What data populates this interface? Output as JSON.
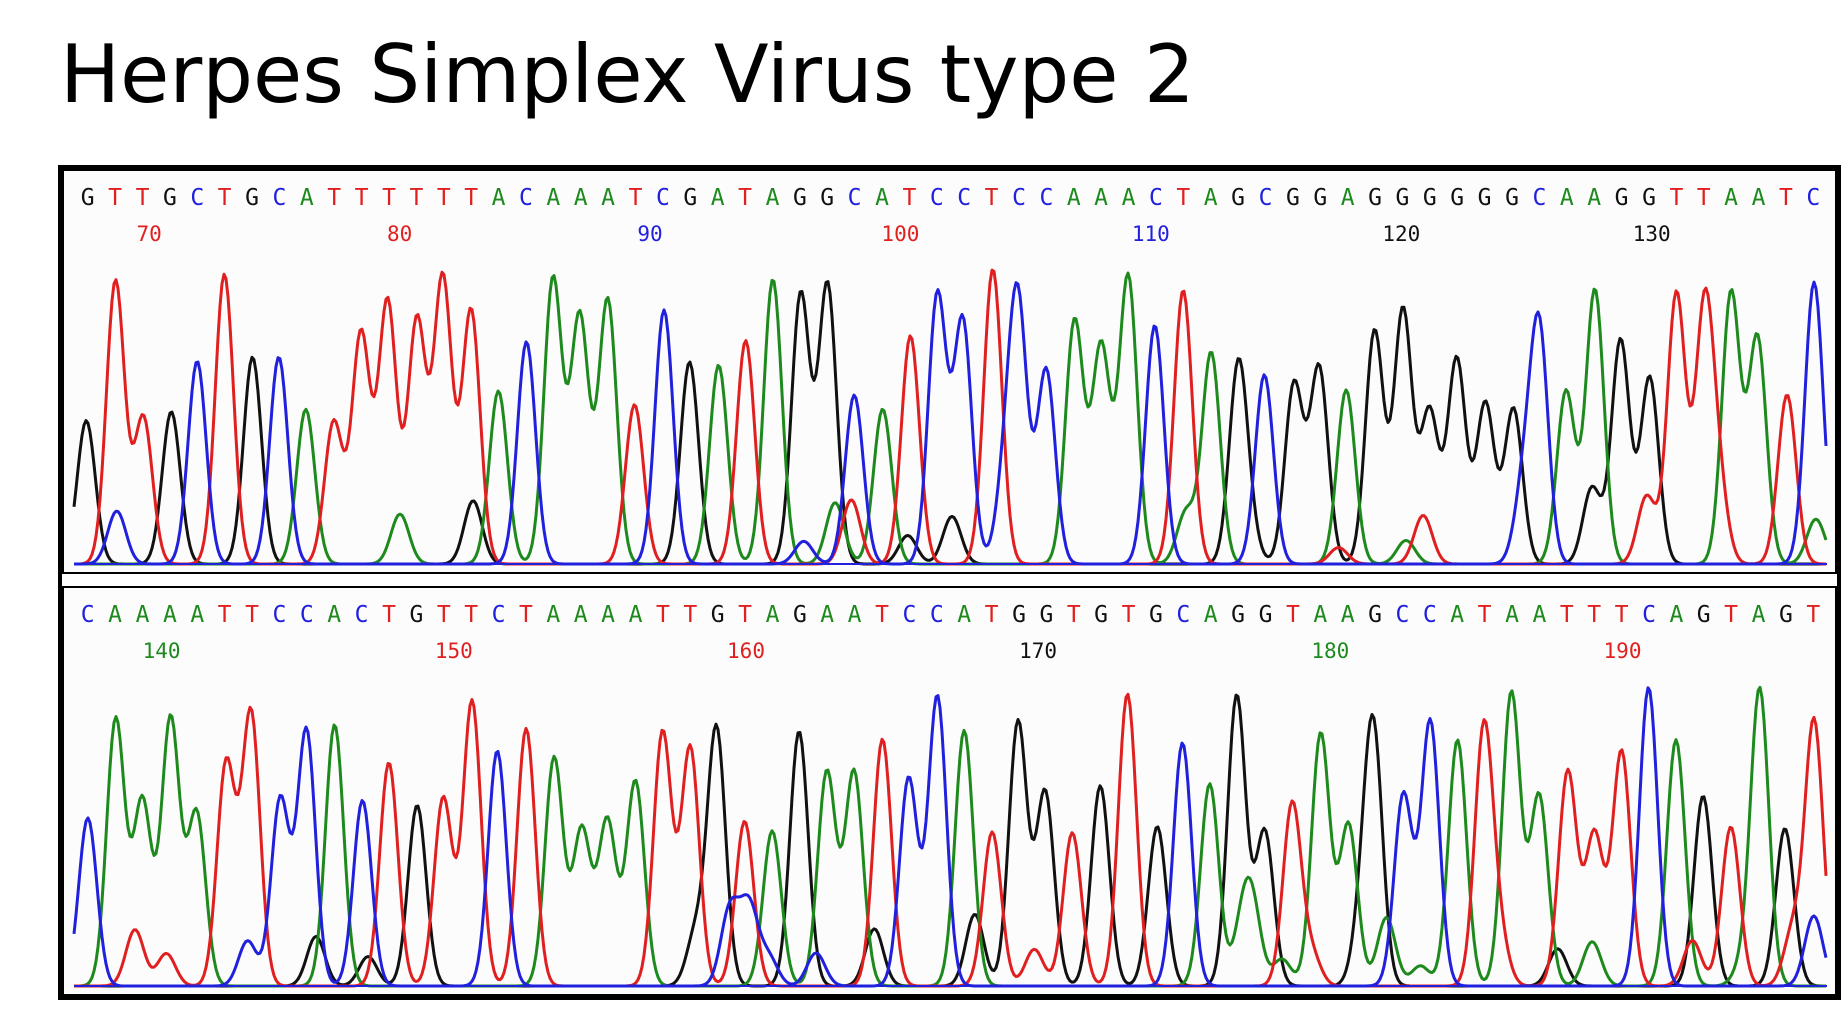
{
  "title": "Herpes Simplex Virus type 2",
  "colors": {
    "A": "#1e8a1e",
    "C": "#2020dd",
    "G": "#111111",
    "T": "#e02020"
  },
  "chart_data": [
    {
      "type": "line",
      "title": "",
      "sequence": "GTTGCTGCATTTTTTACAAATCGATAGGCATCCTCCAAACTAGCGGAGGGGGGCAAGGTTAATC",
      "position_ticks": [
        70,
        80,
        90,
        100,
        110,
        120,
        130
      ],
      "series": [
        {
          "name": "G",
          "color": "#111111"
        },
        {
          "name": "A",
          "color": "#1e8a1e"
        },
        {
          "name": "T",
          "color": "#e02020"
        },
        {
          "name": "C",
          "color": "#2020dd"
        }
      ]
    },
    {
      "type": "line",
      "title": "",
      "sequence": "CAAAATTCCACTGTTCTAAAATTGTAGAATCCATGGTGTGCAGGTAAGCCATAATTTCAGTAGT",
      "position_ticks": [
        140,
        150,
        160,
        170,
        180,
        190
      ],
      "series": [
        {
          "name": "G",
          "color": "#111111"
        },
        {
          "name": "A",
          "color": "#1e8a1e"
        },
        {
          "name": "T",
          "color": "#e02020"
        },
        {
          "name": "C",
          "color": "#2020dd"
        }
      ]
    }
  ]
}
